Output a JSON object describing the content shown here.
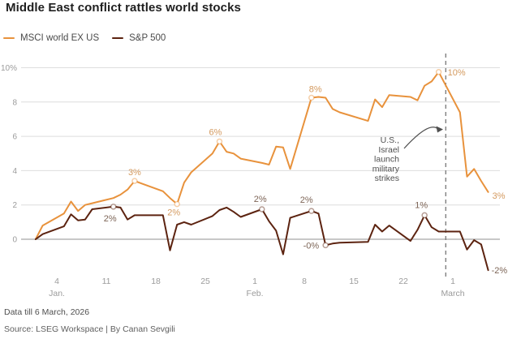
{
  "header": {
    "title": "Middle East conflict rattles world stocks"
  },
  "legend": [
    {
      "label": "MSCI world EX US",
      "color": "#e8923c"
    },
    {
      "label": "S&P 500",
      "color": "#5c2310"
    }
  ],
  "footer": {
    "note": "Data till 6 March, 2026",
    "source": "Source: LSEG Workspace | By Canan Sevgili"
  },
  "chart_data": {
    "type": "line",
    "title": "Middle East conflict rattles world stocks",
    "x_unit": "days since 1 Jan 2026",
    "x_dates": [
      "Jan 1",
      "Jan 2",
      "Jan 5",
      "Jan 6",
      "Jan 7",
      "Jan 8",
      "Jan 9",
      "Jan 12",
      "Jan 13",
      "Jan 14",
      "Jan 15",
      "Jan 16",
      "Jan 19",
      "Jan 20",
      "Jan 21",
      "Jan 22",
      "Jan 23",
      "Jan 26",
      "Jan 27",
      "Jan 28",
      "Jan 29",
      "Jan 30",
      "Feb 2",
      "Feb 3",
      "Feb 4",
      "Feb 5",
      "Feb 6",
      "Feb 9",
      "Feb 10",
      "Feb 11",
      "Feb 12",
      "Feb 13",
      "Feb 17",
      "Feb 18",
      "Feb 19",
      "Feb 20",
      "Feb 23",
      "Feb 24",
      "Feb 25",
      "Feb 26",
      "Feb 27",
      "Mar 2",
      "Mar 3",
      "Mar 4",
      "Mar 5",
      "Mar 6"
    ],
    "x": [
      0,
      1,
      4,
      5,
      6,
      7,
      8,
      11,
      12,
      13,
      14,
      15,
      18,
      19,
      20,
      21,
      22,
      25,
      26,
      27,
      28,
      29,
      32,
      33,
      34,
      35,
      36,
      39,
      40,
      41,
      42,
      43,
      47,
      48,
      49,
      50,
      53,
      54,
      55,
      56,
      57,
      60,
      61,
      62,
      63,
      64
    ],
    "series": [
      {
        "name": "MSCI world EX US",
        "color": "#e8923c",
        "label_color": "#d49a5f",
        "values": [
          0,
          0.8,
          1.5,
          2.2,
          1.65,
          2.0,
          2.1,
          2.4,
          2.6,
          2.9,
          3.4,
          3.25,
          2.8,
          2.4,
          2.05,
          3.3,
          3.9,
          5.0,
          5.7,
          5.1,
          5.0,
          4.7,
          4.45,
          4.35,
          5.4,
          5.35,
          4.1,
          8.25,
          8.3,
          8.25,
          7.6,
          7.4,
          6.9,
          8.15,
          7.7,
          8.4,
          8.3,
          8.1,
          8.95,
          9.2,
          9.75,
          7.4,
          3.65,
          4.1,
          3.4,
          2.75
        ],
        "point_labels": [
          {
            "day": 14,
            "text": "3%",
            "anchor": "middle",
            "dx": 0,
            "dy": -7,
            "marker": true
          },
          {
            "day": 20,
            "text": "2%",
            "anchor": "middle",
            "dx": -4,
            "dy": 14,
            "marker": true
          },
          {
            "day": 26,
            "text": "6%",
            "anchor": "middle",
            "dx": -5,
            "dy": -8,
            "marker": true
          },
          {
            "day": 39,
            "text": "8%",
            "anchor": "middle",
            "dx": 5,
            "dy": -7,
            "marker": true
          },
          {
            "day": 57,
            "text": "10%",
            "anchor": "start",
            "dx": 11,
            "dy": 4,
            "marker": true
          },
          {
            "day": 64,
            "text": "3%",
            "anchor": "start",
            "dx": 5,
            "dy": 8,
            "marker": false
          }
        ]
      },
      {
        "name": "S&P 500",
        "color": "#5c2310",
        "label_color": "#7d6557",
        "values": [
          0,
          0.3,
          0.75,
          1.45,
          1.1,
          1.15,
          1.75,
          1.9,
          1.85,
          1.15,
          1.4,
          1.4,
          1.4,
          -0.65,
          0.85,
          1.0,
          0.85,
          1.35,
          1.7,
          1.85,
          1.6,
          1.3,
          1.75,
          1.05,
          0.5,
          -0.88,
          1.25,
          1.65,
          1.5,
          -0.35,
          -0.25,
          -0.2,
          -0.15,
          0.85,
          0.45,
          0.8,
          -0.1,
          0.55,
          1.4,
          0.7,
          0.45,
          0.45,
          -0.6,
          -0.05,
          -0.3,
          -1.8
        ],
        "point_labels": [
          {
            "day": 11,
            "text": "2%",
            "anchor": "middle",
            "dx": -4,
            "dy": 18,
            "marker": true
          },
          {
            "day": 32,
            "text": "2%",
            "anchor": "middle",
            "dx": -2,
            "dy": -9,
            "marker": true
          },
          {
            "day": 39,
            "text": "2%",
            "anchor": "middle",
            "dx": -6,
            "dy": -10,
            "marker": true
          },
          {
            "day": 41,
            "text": "-0%",
            "anchor": "end",
            "dx": -8,
            "dy": 4,
            "marker": true
          },
          {
            "day": 55,
            "text": "1%",
            "anchor": "middle",
            "dx": -4,
            "dy": -9,
            "marker": true
          },
          {
            "day": 64,
            "text": "-2%",
            "anchor": "start",
            "dx": 4,
            "dy": 4,
            "marker": false
          }
        ]
      }
    ],
    "yticks": [
      {
        "value": 10,
        "label": "10%"
      },
      {
        "value": 8,
        "label": "8"
      },
      {
        "value": 6,
        "label": "6"
      },
      {
        "value": 4,
        "label": "4"
      },
      {
        "value": 2,
        "label": "2"
      },
      {
        "value": 0,
        "label": "0"
      }
    ],
    "ylim": [
      -2,
      10
    ],
    "grid": "horizontal",
    "legend_position": "top-left",
    "xticks": [
      {
        "day": 3,
        "label": "4"
      },
      {
        "day": 10,
        "label": "11"
      },
      {
        "day": 17,
        "label": "18"
      },
      {
        "day": 24,
        "label": "25"
      },
      {
        "day": 31,
        "label": "1"
      },
      {
        "day": 38,
        "label": "8"
      },
      {
        "day": 45,
        "label": "15"
      },
      {
        "day": 52,
        "label": "22"
      },
      {
        "day": 59,
        "label": "1"
      }
    ],
    "month_labels": [
      {
        "day": 3,
        "text": "Jan."
      },
      {
        "day": 31,
        "text": "Feb."
      },
      {
        "day": 59,
        "text": "March"
      }
    ],
    "event_line": {
      "day": 58,
      "annotation": [
        "U.S.,",
        "Israel",
        "launch",
        "military",
        "strikes"
      ]
    },
    "colors": {
      "gridline": "#dedede",
      "zero_line": "#a8a8a8",
      "axis_text": "#9b9b9b",
      "event_line": "#7f7f7f",
      "annotation_text": "#4f4f4f"
    }
  }
}
